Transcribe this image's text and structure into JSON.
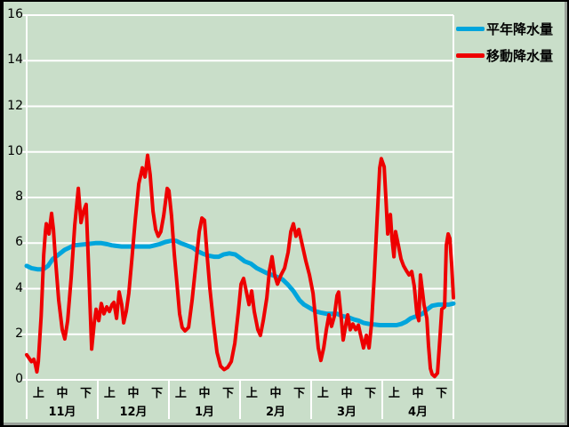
{
  "window": {
    "background": "#c9dec9",
    "frame_outer": "#000000",
    "frame_inner": "#9aa19a",
    "grid_color": "#ffffff",
    "text_color": "#000000"
  },
  "legend": {
    "items": [
      {
        "label": "平年降水量",
        "color": "#00a5dc"
      },
      {
        "label": "移動降水量",
        "color": "#ee0000"
      }
    ]
  },
  "chart_data": {
    "type": "line",
    "title": "",
    "xlabel": "",
    "ylabel": "",
    "grid": true,
    "legend_position": "top-right",
    "y_axis": {
      "min": 0,
      "max": 16,
      "step": 2,
      "tick_labels": [
        "0",
        "2",
        "4",
        "6",
        "8",
        "10",
        "12",
        "14",
        "16"
      ]
    },
    "x_axis": {
      "months": [
        "11月",
        "12月",
        "1月",
        "2月",
        "3月",
        "4月"
      ],
      "periods": [
        "上",
        "中",
        "下"
      ],
      "days_per_month": 30,
      "total_days": 180
    },
    "series": [
      {
        "name": "平年降水量",
        "color": "#00a5dc",
        "width": 5,
        "points": [
          [
            0,
            5
          ],
          [
            2,
            4.9
          ],
          [
            4.5,
            4.85
          ],
          [
            7,
            4.85
          ],
          [
            9,
            5
          ],
          [
            11,
            5.3
          ],
          [
            13.5,
            5.5
          ],
          [
            16,
            5.7
          ],
          [
            18,
            5.8
          ],
          [
            20,
            5.9
          ],
          [
            25,
            5.95
          ],
          [
            29,
            6
          ],
          [
            31.5,
            6
          ],
          [
            34,
            5.95
          ],
          [
            36,
            5.9
          ],
          [
            40,
            5.85
          ],
          [
            52,
            5.85
          ],
          [
            54,
            5.9
          ],
          [
            56,
            5.95
          ],
          [
            58.5,
            6.05
          ],
          [
            61,
            6.1
          ],
          [
            63,
            6.1
          ],
          [
            65,
            6
          ],
          [
            67.5,
            5.9
          ],
          [
            70,
            5.8
          ],
          [
            72,
            5.65
          ],
          [
            74,
            5.55
          ],
          [
            76.5,
            5.45
          ],
          [
            79,
            5.4
          ],
          [
            81,
            5.4
          ],
          [
            83,
            5.5
          ],
          [
            85.5,
            5.55
          ],
          [
            88,
            5.5
          ],
          [
            90,
            5.35
          ],
          [
            92,
            5.2
          ],
          [
            94.5,
            5.1
          ],
          [
            97,
            4.9
          ],
          [
            99,
            4.8
          ],
          [
            101,
            4.7
          ],
          [
            103.5,
            4.6
          ],
          [
            106,
            4.5
          ],
          [
            108,
            4.4
          ],
          [
            110,
            4.2
          ],
          [
            112.5,
            3.9
          ],
          [
            115,
            3.5
          ],
          [
            117,
            3.3
          ],
          [
            119.5,
            3.15
          ],
          [
            122,
            3
          ],
          [
            124,
            2.95
          ],
          [
            126.5,
            2.9
          ],
          [
            131,
            2.9
          ],
          [
            133,
            2.8
          ],
          [
            135.5,
            2.75
          ],
          [
            138,
            2.65
          ],
          [
            140,
            2.6
          ],
          [
            142,
            2.5
          ],
          [
            144.5,
            2.45
          ],
          [
            149,
            2.4
          ],
          [
            156,
            2.4
          ],
          [
            158,
            2.45
          ],
          [
            160,
            2.55
          ],
          [
            162,
            2.7
          ],
          [
            164.5,
            2.8
          ],
          [
            167,
            2.9
          ],
          [
            169,
            3.1
          ],
          [
            171,
            3.25
          ],
          [
            173.5,
            3.3
          ],
          [
            178,
            3.3
          ],
          [
            180,
            3.35
          ]
        ]
      },
      {
        "name": "移動降水量",
        "color": "#ee0000",
        "width": 4,
        "points": [
          [
            0,
            1.1
          ],
          [
            1,
            0.95
          ],
          [
            2,
            0.8
          ],
          [
            3,
            0.9
          ],
          [
            3.6,
            0.7
          ],
          [
            4.3,
            0.35
          ],
          [
            4.9,
            0.8
          ],
          [
            5.5,
            1.8
          ],
          [
            6.1,
            2.8
          ],
          [
            6.6,
            4
          ],
          [
            7.2,
            5.5
          ],
          [
            7.9,
            6.5
          ],
          [
            8.3,
            6.85
          ],
          [
            9.4,
            6.4
          ],
          [
            10.5,
            7.3
          ],
          [
            11.3,
            6.6
          ],
          [
            12,
            5.5
          ],
          [
            13.5,
            3.5
          ],
          [
            15,
            2.2
          ],
          [
            16.1,
            1.8
          ],
          [
            17.3,
            2.6
          ],
          [
            18.8,
            4.5
          ],
          [
            20.3,
            6.8
          ],
          [
            21.8,
            8.4
          ],
          [
            22.9,
            6.9
          ],
          [
            24,
            7.4
          ],
          [
            25.1,
            7.7
          ],
          [
            26.3,
            4.5
          ],
          [
            27.4,
            1.35
          ],
          [
            28.5,
            2.5
          ],
          [
            29.3,
            3.1
          ],
          [
            30.4,
            2.6
          ],
          [
            31.5,
            3.35
          ],
          [
            32.6,
            2.9
          ],
          [
            33.8,
            3.2
          ],
          [
            34.9,
            3
          ],
          [
            36,
            3.3
          ],
          [
            36.8,
            3.4
          ],
          [
            37.9,
            2.7
          ],
          [
            39,
            3.85
          ],
          [
            40.1,
            3.3
          ],
          [
            40.9,
            2.5
          ],
          [
            42,
            3
          ],
          [
            43.1,
            3.8
          ],
          [
            44.3,
            5.2
          ],
          [
            45.8,
            7
          ],
          [
            47.3,
            8.6
          ],
          [
            48.8,
            9.3
          ],
          [
            49.9,
            8.9
          ],
          [
            51,
            9.85
          ],
          [
            52.1,
            9
          ],
          [
            53.3,
            7.4
          ],
          [
            54.4,
            6.6
          ],
          [
            55.5,
            6.3
          ],
          [
            56.6,
            6.5
          ],
          [
            57.8,
            7.2
          ],
          [
            59.3,
            8.4
          ],
          [
            60,
            8.3
          ],
          [
            61.1,
            7.2
          ],
          [
            62.3,
            5.5
          ],
          [
            63.4,
            4.2
          ],
          [
            64.5,
            2.9
          ],
          [
            65.6,
            2.3
          ],
          [
            66.8,
            2.15
          ],
          [
            68.3,
            2.3
          ],
          [
            69.8,
            3.5
          ],
          [
            71.3,
            5
          ],
          [
            72.8,
            6.5
          ],
          [
            73.9,
            7.1
          ],
          [
            75,
            7
          ],
          [
            76.1,
            5.5
          ],
          [
            77.3,
            4
          ],
          [
            78.8,
            2.5
          ],
          [
            80.3,
            1.2
          ],
          [
            81.8,
            0.6
          ],
          [
            83.3,
            0.45
          ],
          [
            84.8,
            0.55
          ],
          [
            86.3,
            0.8
          ],
          [
            87.8,
            1.6
          ],
          [
            89.3,
            3
          ],
          [
            90.4,
            4.2
          ],
          [
            91.5,
            4.45
          ],
          [
            92.6,
            3.9
          ],
          [
            93.8,
            3.3
          ],
          [
            94.9,
            3.9
          ],
          [
            96,
            3
          ],
          [
            97.5,
            2.2
          ],
          [
            98.6,
            1.95
          ],
          [
            99.8,
            2.6
          ],
          [
            101.3,
            3.6
          ],
          [
            102.4,
            4.8
          ],
          [
            103.5,
            5.4
          ],
          [
            104.6,
            4.6
          ],
          [
            105.8,
            4.2
          ],
          [
            107.3,
            4.6
          ],
          [
            108.8,
            4.9
          ],
          [
            110.3,
            5.6
          ],
          [
            111.4,
            6.5
          ],
          [
            112.5,
            6.85
          ],
          [
            113.6,
            6.3
          ],
          [
            114.8,
            6.6
          ],
          [
            116.3,
            5.9
          ],
          [
            117.8,
            5.2
          ],
          [
            119.3,
            4.6
          ],
          [
            120.8,
            3.8
          ],
          [
            121.9,
            2.6
          ],
          [
            123,
            1.4
          ],
          [
            124.1,
            0.85
          ],
          [
            125.3,
            1.4
          ],
          [
            126.4,
            2.2
          ],
          [
            127.5,
            2.85
          ],
          [
            128.6,
            2.35
          ],
          [
            129.8,
            2.8
          ],
          [
            130.9,
            3.7
          ],
          [
            131.6,
            3.85
          ],
          [
            132.8,
            2.6
          ],
          [
            133.5,
            1.75
          ],
          [
            134.6,
            2.4
          ],
          [
            135.4,
            2.85
          ],
          [
            136.5,
            2.2
          ],
          [
            137.6,
            2.45
          ],
          [
            138.8,
            2.2
          ],
          [
            139.9,
            2.4
          ],
          [
            141,
            1.9
          ],
          [
            142.1,
            1.4
          ],
          [
            143.3,
            1.95
          ],
          [
            144.4,
            1.4
          ],
          [
            145.5,
            2.5
          ],
          [
            146.6,
            4.5
          ],
          [
            147.8,
            7
          ],
          [
            148.9,
            9.3
          ],
          [
            149.6,
            9.7
          ],
          [
            150.8,
            9.35
          ],
          [
            151.5,
            8
          ],
          [
            152.3,
            6.4
          ],
          [
            153.4,
            7.25
          ],
          [
            154.1,
            6.2
          ],
          [
            154.9,
            5.4
          ],
          [
            155.6,
            6.5
          ],
          [
            156.8,
            5.9
          ],
          [
            157.9,
            5.3
          ],
          [
            159,
            5
          ],
          [
            160.1,
            4.8
          ],
          [
            161.3,
            4.6
          ],
          [
            162.4,
            4.75
          ],
          [
            163.5,
            4.1
          ],
          [
            164.6,
            2.9
          ],
          [
            165.4,
            2.6
          ],
          [
            166.1,
            4.6
          ],
          [
            166.9,
            3.9
          ],
          [
            167.6,
            3.3
          ],
          [
            168.8,
            2.7
          ],
          [
            169.5,
            1.5
          ],
          [
            170.3,
            0.5
          ],
          [
            171,
            0.25
          ],
          [
            172.1,
            0.15
          ],
          [
            173.3,
            0.3
          ],
          [
            174.4,
            2
          ],
          [
            175.1,
            3.1
          ],
          [
            176.3,
            3.2
          ],
          [
            177,
            5.9
          ],
          [
            177.8,
            6.4
          ],
          [
            178.5,
            6.2
          ],
          [
            179.3,
            5
          ],
          [
            180,
            3.6
          ]
        ]
      }
    ]
  }
}
